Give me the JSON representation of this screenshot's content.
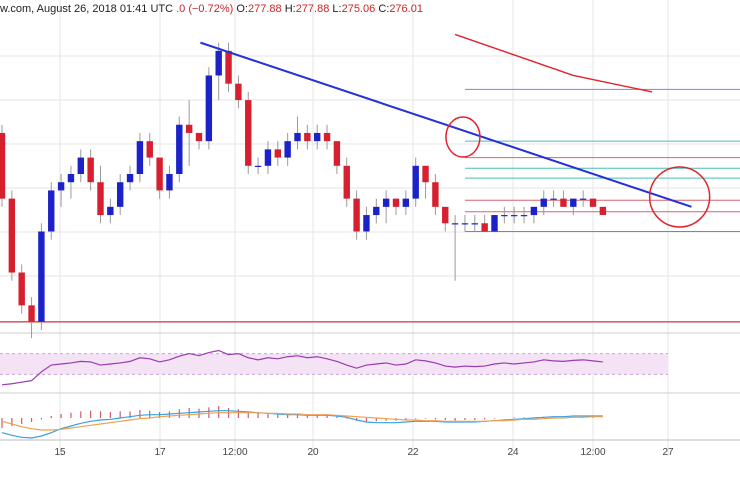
{
  "header": {
    "source": "w.com, August 26, 2018 01:41 UTC",
    "change": ".0 (−0.72%)",
    "o_label": "O:",
    "o_value": "277.88",
    "h_label": "H:",
    "h_value": "277.88",
    "l_label": "L:",
    "l_value": "275.06",
    "c_label": "C:",
    "c_value": "276.01"
  },
  "colors": {
    "up": "#1a22c8",
    "down": "#d62030",
    "trendline": "#2430d8",
    "ma": "#e0242c",
    "rsi": "#9a3ab0",
    "rsi_band": "#f3e3f5",
    "fib_red": "#d4636a",
    "fib_teal": "#4cbcb8",
    "fib_violet": "#b46ad2",
    "macd_hist": "#d05a6a",
    "macd_line": "#3aa0e0",
    "signal_line": "#f0a050",
    "grid": "#e6e6e6",
    "annotation": "#e0242c"
  },
  "chart_data": {
    "type": "candlestick",
    "x_tick_labels": [
      "15",
      "17",
      "12:00",
      "20",
      "22",
      "24",
      "12:00",
      "27"
    ],
    "price_range": [
      264,
      302
    ],
    "candles": [
      [
        288,
        289,
        279,
        280
      ],
      [
        280,
        281,
        270,
        271
      ],
      [
        271,
        272,
        266,
        267
      ],
      [
        267,
        268,
        263,
        265
      ],
      [
        265,
        277,
        264,
        276
      ],
      [
        276,
        282,
        275,
        281
      ],
      [
        281,
        283,
        279,
        282
      ],
      [
        282,
        284,
        280,
        283
      ],
      [
        283,
        286,
        282,
        285
      ],
      [
        285,
        286,
        281,
        282
      ],
      [
        282,
        284,
        277,
        278
      ],
      [
        278,
        280,
        277,
        279
      ],
      [
        279,
        283,
        278,
        282
      ],
      [
        282,
        284,
        281,
        283
      ],
      [
        283,
        288,
        282,
        287
      ],
      [
        287,
        288,
        284,
        285
      ],
      [
        285,
        285,
        280,
        281
      ],
      [
        281,
        284,
        280,
        283
      ],
      [
        283,
        290,
        282,
        289
      ],
      [
        289,
        292,
        284,
        288
      ],
      [
        288,
        288,
        286,
        287
      ],
      [
        287,
        296,
        286,
        295
      ],
      [
        295,
        299,
        292,
        298
      ],
      [
        298,
        299,
        293,
        294
      ],
      [
        294,
        295,
        291,
        292
      ],
      [
        292,
        293,
        283,
        284
      ],
      [
        284,
        285,
        283,
        284
      ],
      [
        284,
        287,
        283,
        286
      ],
      [
        286,
        287,
        284,
        285
      ],
      [
        285,
        288,
        284,
        287
      ],
      [
        287,
        290,
        286,
        288
      ],
      [
        288,
        289,
        286,
        287
      ],
      [
        287,
        289,
        286,
        288
      ],
      [
        288,
        289,
        286,
        287
      ],
      [
        287,
        287,
        283,
        284
      ],
      [
        284,
        285,
        279,
        280
      ],
      [
        280,
        281,
        275,
        276
      ],
      [
        276,
        279,
        275,
        278
      ],
      [
        278,
        280,
        277,
        279
      ],
      [
        279,
        281,
        277,
        280
      ],
      [
        280,
        280,
        278,
        279
      ],
      [
        279,
        281,
        278,
        280
      ],
      [
        280,
        285,
        279,
        284
      ],
      [
        284,
        284,
        280,
        282
      ],
      [
        282,
        283,
        278,
        279
      ],
      [
        279,
        279,
        276,
        277
      ],
      [
        277,
        278,
        270,
        277
      ],
      [
        277,
        278,
        276,
        277
      ],
      [
        277,
        278,
        276,
        277
      ],
      [
        277,
        278,
        276,
        276
      ],
      [
        276,
        278,
        276,
        278
      ],
      [
        278,
        279,
        277,
        278
      ],
      [
        278,
        279,
        277,
        278
      ],
      [
        278,
        279,
        277,
        278
      ],
      [
        278,
        279,
        277,
        279
      ],
      [
        279,
        281,
        278,
        280
      ],
      [
        280,
        281,
        279,
        280
      ],
      [
        280,
        281,
        279,
        279
      ],
      [
        279,
        280,
        278,
        280
      ],
      [
        280,
        281,
        279,
        280
      ],
      [
        280,
        280,
        279,
        279
      ],
      [
        279,
        279,
        278,
        278
      ]
    ],
    "trendline": {
      "from": [
        24,
        299
      ],
      "to": [
        70,
        279
      ]
    },
    "moving_average": [
      [
        46,
        300
      ],
      [
        52,
        297.5
      ],
      [
        58,
        295
      ],
      [
        66,
        293
      ]
    ],
    "horizontal_levels": [
      {
        "price": 265.0,
        "from": -1,
        "to": 86,
        "color": "red"
      },
      {
        "price": 287.0,
        "from": 47,
        "to": 86,
        "color": "teal"
      },
      {
        "price": 285.0,
        "from": 47,
        "to": 86,
        "color": "red"
      },
      {
        "price": 283.7,
        "from": 47,
        "to": 86,
        "color": "teal"
      },
      {
        "price": 282.5,
        "from": 47,
        "to": 86,
        "color": "teal"
      },
      {
        "price": 279.8,
        "from": 47,
        "to": 86,
        "color": "red"
      },
      {
        "price": 278.4,
        "from": 47,
        "to": 86,
        "color": "red"
      },
      {
        "price": 276.0,
        "from": 47,
        "to": 86,
        "color": "red"
      },
      {
        "price": 293.3,
        "from": 47,
        "to": 86,
        "color": "violet"
      }
    ],
    "highlight_circles": [
      {
        "index": 47,
        "price": 287.5
      },
      {
        "index": 69,
        "price": 280.2
      }
    ],
    "rsi": {
      "range": [
        0,
        100
      ],
      "band": [
        30,
        70
      ],
      "values": [
        10,
        12,
        15,
        18,
        35,
        48,
        50,
        52,
        55,
        54,
        48,
        50,
        52,
        55,
        62,
        60,
        54,
        58,
        65,
        70,
        66,
        72,
        76,
        68,
        70,
        62,
        58,
        62,
        60,
        64,
        66,
        62,
        64,
        60,
        55,
        48,
        42,
        48,
        50,
        52,
        48,
        50,
        58,
        56,
        52,
        46,
        44,
        46,
        45,
        46,
        50,
        52,
        50,
        52,
        54,
        58,
        56,
        55,
        57,
        58,
        56,
        54
      ]
    },
    "macd": {
      "range": [
        -3,
        3
      ],
      "histogram": [
        -1.5,
        -1.2,
        -0.9,
        -0.6,
        -0.2,
        0.3,
        0.6,
        0.8,
        1.0,
        1.1,
        1.0,
        0.9,
        1.0,
        1.0,
        1.2,
        1.1,
        0.9,
        1.0,
        1.3,
        1.5,
        1.4,
        1.6,
        1.8,
        1.5,
        1.3,
        1.0,
        0.8,
        0.7,
        0.6,
        0.6,
        0.6,
        0.5,
        0.5,
        0.4,
        0.2,
        -0.1,
        -0.4,
        -0.5,
        -0.5,
        -0.4,
        -0.4,
        -0.3,
        -0.1,
        -0.1,
        -0.2,
        -0.3,
        -0.4,
        -0.3,
        -0.3,
        -0.2,
        -0.1,
        0.0,
        0.1,
        0.1,
        0.1,
        0.2,
        0.2,
        0.1,
        0.1,
        0.1,
        0.1,
        0.0
      ],
      "macd_line": [
        -2.2,
        -2.6,
        -2.9,
        -3.0,
        -2.7,
        -2.2,
        -1.6,
        -1.2,
        -0.8,
        -0.5,
        -0.3,
        -0.2,
        0.0,
        0.2,
        0.4,
        0.5,
        0.5,
        0.6,
        0.7,
        0.8,
        0.9,
        1.0,
        1.1,
        1.1,
        1.0,
        0.9,
        0.8,
        0.7,
        0.6,
        0.5,
        0.5,
        0.4,
        0.4,
        0.4,
        0.3,
        0.1,
        -0.3,
        -0.6,
        -0.7,
        -0.7,
        -0.7,
        -0.6,
        -0.5,
        -0.5,
        -0.5,
        -0.6,
        -0.6,
        -0.6,
        -0.6,
        -0.5,
        -0.4,
        -0.3,
        -0.2,
        -0.1,
        0.0,
        0.1,
        0.2,
        0.2,
        0.3,
        0.3,
        0.3,
        0.3
      ],
      "signal_line": [
        -0.5,
        -0.9,
        -1.3,
        -1.6,
        -1.8,
        -1.8,
        -1.7,
        -1.5,
        -1.3,
        -1.1,
        -0.9,
        -0.7,
        -0.5,
        -0.3,
        -0.1,
        0.0,
        0.2,
        0.3,
        0.4,
        0.5,
        0.6,
        0.7,
        0.8,
        0.8,
        0.8,
        0.8,
        0.8,
        0.7,
        0.7,
        0.6,
        0.6,
        0.5,
        0.5,
        0.5,
        0.4,
        0.3,
        0.2,
        0.1,
        0.0,
        -0.1,
        -0.2,
        -0.3,
        -0.3,
        -0.4,
        -0.4,
        -0.5,
        -0.5,
        -0.5,
        -0.5,
        -0.5,
        -0.4,
        -0.4,
        -0.3,
        -0.2,
        -0.2,
        -0.1,
        0.0,
        0.0,
        0.1,
        0.1,
        0.2,
        0.2
      ]
    }
  }
}
